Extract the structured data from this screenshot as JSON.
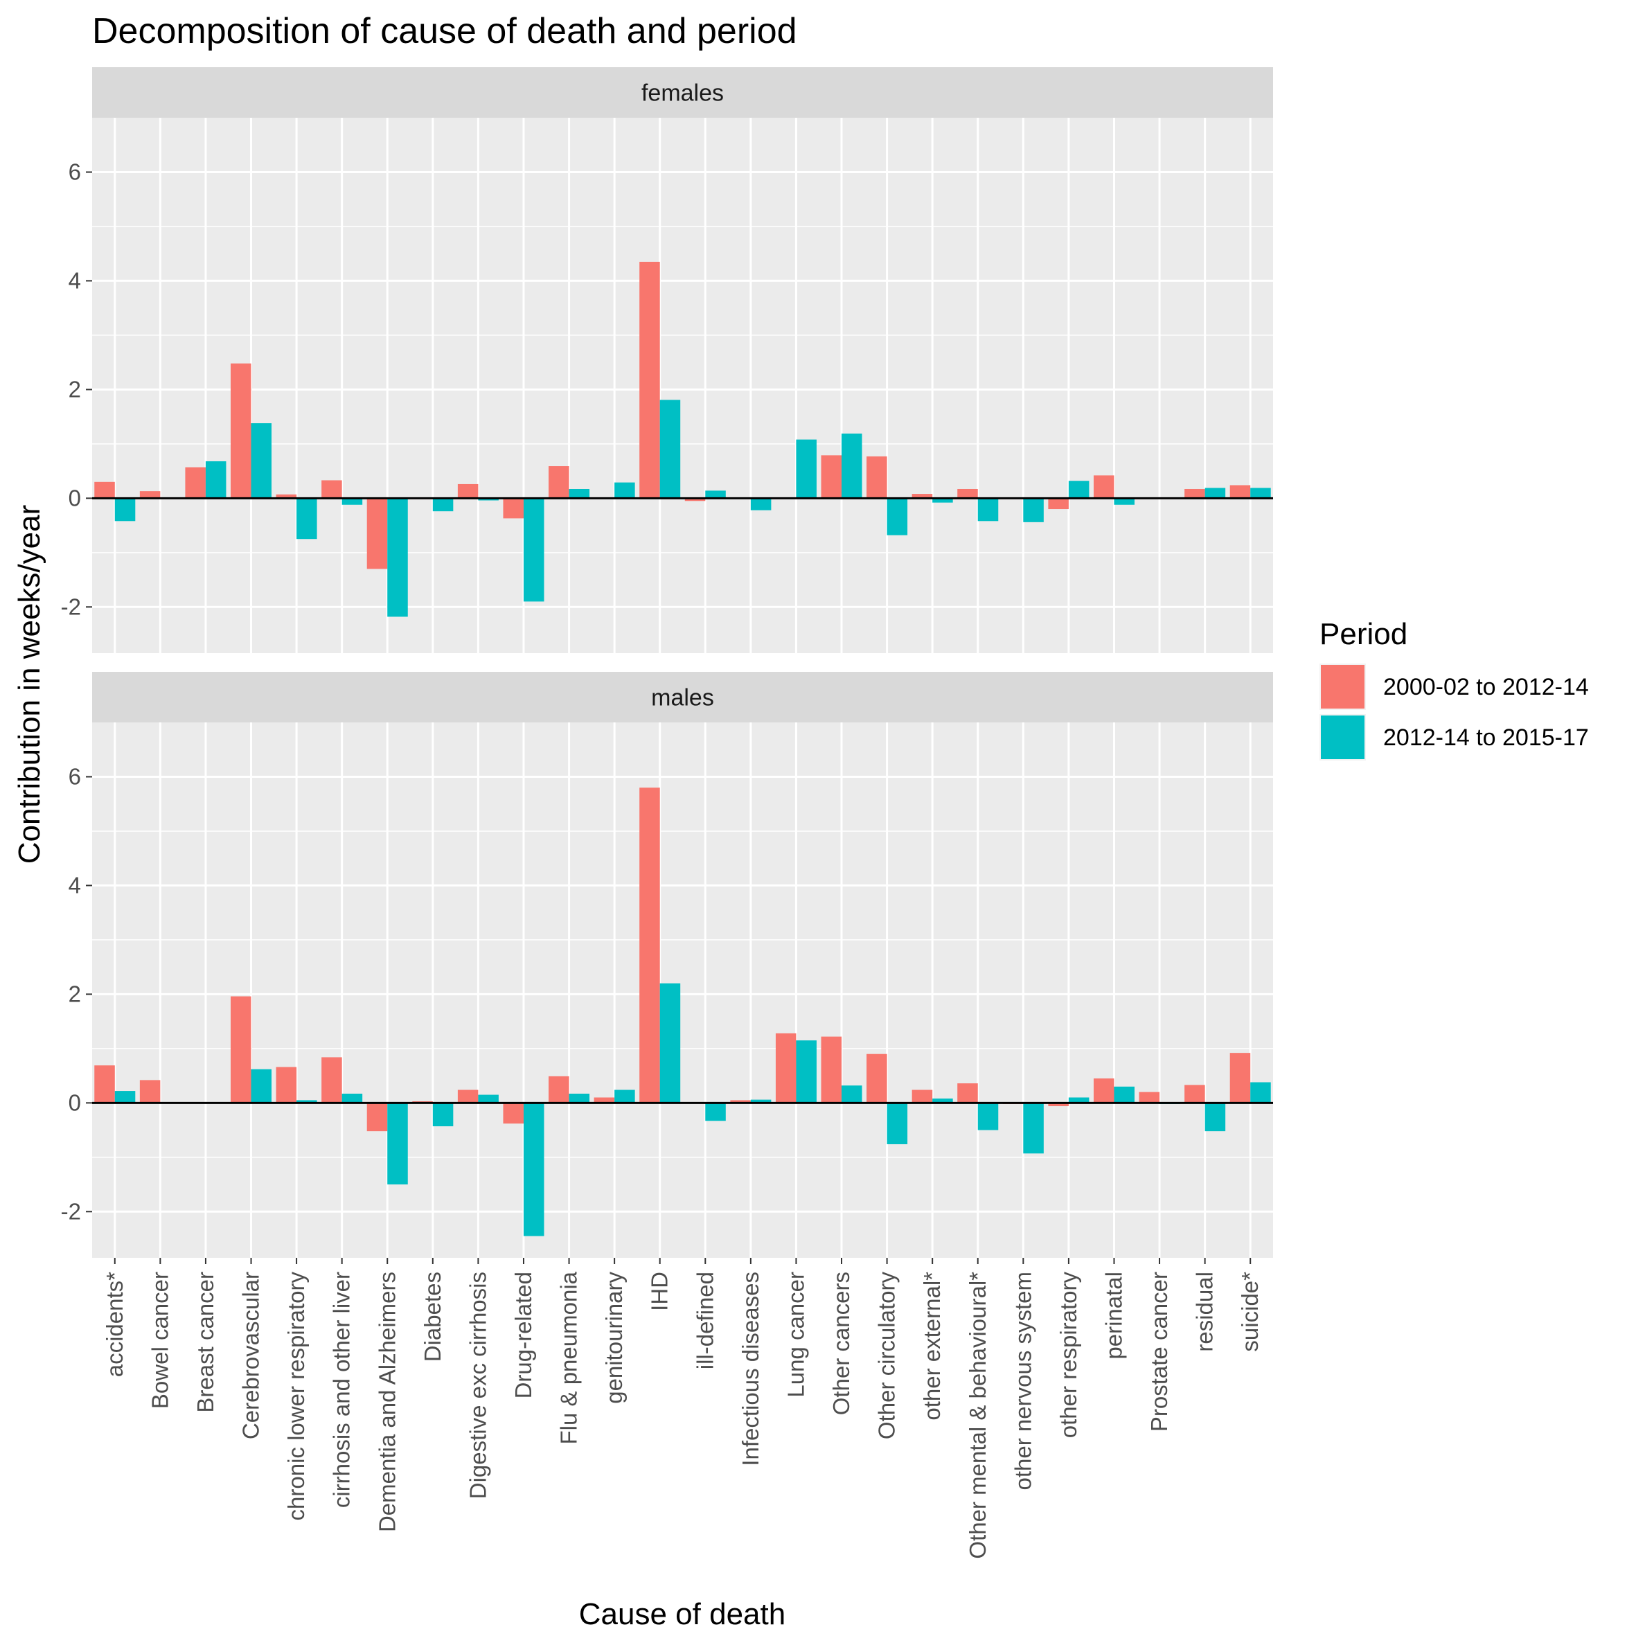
{
  "chart_data": {
    "type": "bar",
    "title": "Decomposition of cause of death and period",
    "xlabel": "Cause of death",
    "ylabel": "Contribution in weeks/year",
    "grid": true,
    "legend_position": "right",
    "legend": {
      "title": "Period",
      "entries": [
        {
          "label": "2000-02 to 2012-14",
          "color": "#F8766D"
        },
        {
          "label": "2012-14 to 2015-17",
          "color": "#00BFC4"
        }
      ]
    },
    "y_ticks": [
      "-2",
      "0",
      "2",
      "4",
      "6"
    ],
    "categories": [
      "accidents*",
      "Bowel cancer",
      "Breast cancer",
      "Cerebrovascular",
      "chronic lower respiratory",
      "cirrhosis and other liver",
      "Dementia and Alzheimers",
      "Diabetes",
      "Digestive exc cirrhosis",
      "Drug-related",
      "Flu & pneumonia",
      "genitourinary",
      "IHD",
      "ill-defined",
      "Infectious diseases",
      "Lung cancer",
      "Other cancers",
      "Other circulatory",
      "other external*",
      "Other mental & behavioural*",
      "other nervous system",
      "other respiratory",
      "perinatal",
      "Prostate cancer",
      "residual",
      "suicide*"
    ],
    "panels": [
      {
        "label": "females",
        "ylim": [
          -2.85,
          7.0
        ],
        "series": [
          {
            "name": "2000-02 to 2012-14",
            "values": [
              0.3,
              0.13,
              0.57,
              2.48,
              0.07,
              0.33,
              -1.3,
              0.0,
              0.26,
              -0.37,
              0.59,
              0.0,
              4.35,
              -0.05,
              0.0,
              0.0,
              0.79,
              0.77,
              0.08,
              0.17,
              0.0,
              -0.2,
              0.42,
              0.0,
              0.17,
              0.24
            ]
          },
          {
            "name": "2012-14 to 2015-17",
            "values": [
              -0.42,
              0.01,
              0.68,
              1.38,
              -0.75,
              -0.12,
              -2.18,
              -0.24,
              -0.04,
              -1.9,
              0.17,
              0.29,
              1.81,
              0.14,
              -0.22,
              1.08,
              1.19,
              -0.68,
              -0.08,
              -0.42,
              -0.44,
              0.32,
              -0.12,
              0.0,
              0.19,
              0.19
            ]
          }
        ]
      },
      {
        "label": "males",
        "ylim": [
          -2.85,
          7.0
        ],
        "series": [
          {
            "name": "2000-02 to 2012-14",
            "values": [
              0.69,
              0.42,
              0.0,
              1.96,
              0.66,
              0.84,
              -0.52,
              0.03,
              0.24,
              -0.38,
              0.49,
              0.1,
              5.8,
              0.0,
              0.05,
              1.28,
              1.22,
              0.9,
              0.24,
              0.36,
              -0.02,
              -0.06,
              0.45,
              0.2,
              0.33,
              0.92
            ]
          },
          {
            "name": "2012-14 to 2015-17",
            "values": [
              0.22,
              0.0,
              0.0,
              0.62,
              0.05,
              0.17,
              -1.5,
              -0.43,
              0.15,
              -2.45,
              0.17,
              0.24,
              2.2,
              -0.33,
              0.06,
              1.15,
              0.32,
              -0.76,
              0.08,
              -0.5,
              -0.93,
              0.1,
              0.3,
              -0.02,
              -0.52,
              0.38
            ]
          }
        ]
      }
    ]
  }
}
